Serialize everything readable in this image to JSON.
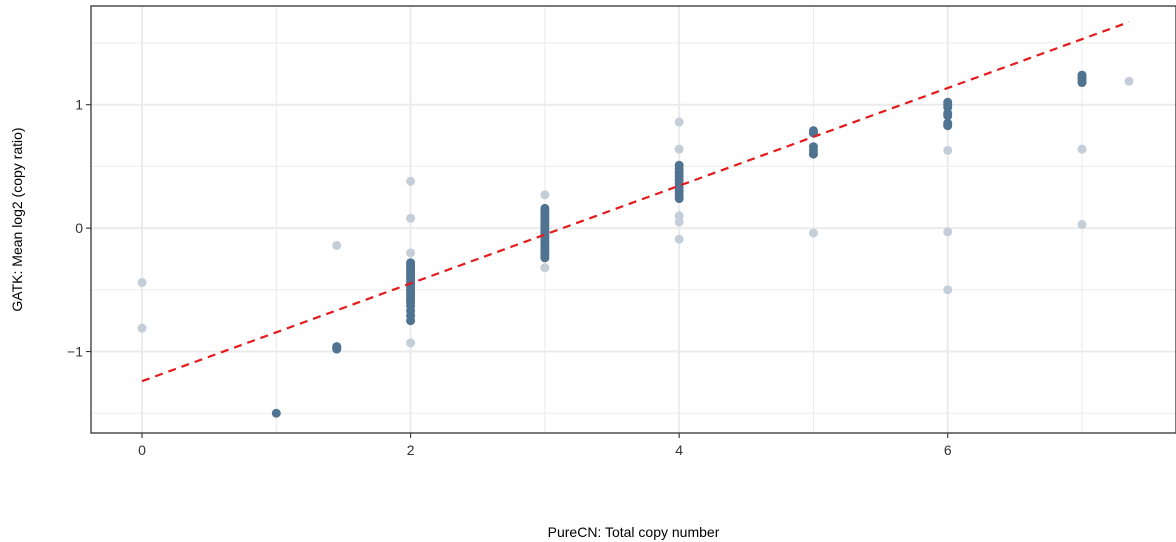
{
  "chart_data": {
    "type": "scatter",
    "title": "",
    "xlabel": "PureCN: Total copy number",
    "ylabel": "GATK: Mean log2 (copy ratio)",
    "xlim": [
      -0.38,
      7.7
    ],
    "ylim": [
      -1.66,
      1.8
    ],
    "x_ticks": [
      0,
      2,
      4,
      6
    ],
    "x_tick_labels": [
      "0",
      "2",
      "4",
      "6"
    ],
    "y_ticks": [
      -1,
      0,
      1
    ],
    "y_tick_labels": [
      "−1",
      "0",
      "1"
    ],
    "grid": true,
    "legend": "none",
    "colors": {
      "primary_points": "#4f7390",
      "faded_points": "#c4ced9",
      "fit_line": "#e41a1c",
      "grid": "#ebebeb",
      "panel_border": "#333333"
    },
    "series": [
      {
        "role": "faded",
        "points": [
          [
            0,
            -0.44
          ],
          [
            0,
            -0.81
          ],
          [
            1.45,
            -0.14
          ],
          [
            2,
            0.38
          ],
          [
            2,
            0.08
          ],
          [
            2,
            -0.2
          ],
          [
            2,
            -0.93
          ],
          [
            3,
            0.27
          ],
          [
            3,
            -0.32
          ],
          [
            4,
            0.86
          ],
          [
            4,
            0.64
          ],
          [
            4,
            0.1
          ],
          [
            4,
            0.05
          ],
          [
            4,
            -0.09
          ],
          [
            5,
            -0.04
          ],
          [
            6,
            0.63
          ],
          [
            6,
            -0.03
          ],
          [
            6,
            -0.5
          ],
          [
            7,
            0.64
          ],
          [
            7,
            0.03
          ],
          [
            7.35,
            1.19
          ]
        ]
      },
      {
        "role": "primary",
        "points": [
          [
            1,
            -1.5
          ],
          [
            1.45,
            -0.96
          ],
          [
            1.45,
            -0.97
          ],
          [
            1.45,
            -0.98
          ],
          [
            2,
            -0.28
          ],
          [
            2,
            -0.3
          ],
          [
            2,
            -0.32
          ],
          [
            2,
            -0.34
          ],
          [
            2,
            -0.36
          ],
          [
            2,
            -0.38
          ],
          [
            2,
            -0.4
          ],
          [
            2,
            -0.42
          ],
          [
            2,
            -0.44
          ],
          [
            2,
            -0.46
          ],
          [
            2,
            -0.48
          ],
          [
            2,
            -0.5
          ],
          [
            2,
            -0.52
          ],
          [
            2,
            -0.54
          ],
          [
            2,
            -0.56
          ],
          [
            2,
            -0.58
          ],
          [
            2,
            -0.6
          ],
          [
            2,
            -0.63
          ],
          [
            2,
            -0.67
          ],
          [
            2,
            -0.71
          ],
          [
            2,
            -0.75
          ],
          [
            3,
            0.16
          ],
          [
            3,
            0.14
          ],
          [
            3,
            0.12
          ],
          [
            3,
            0.1
          ],
          [
            3,
            0.08
          ],
          [
            3,
            0.06
          ],
          [
            3,
            0.04
          ],
          [
            3,
            0.02
          ],
          [
            3,
            0.0
          ],
          [
            3,
            -0.02
          ],
          [
            3,
            -0.04
          ],
          [
            3,
            -0.06
          ],
          [
            3,
            -0.08
          ],
          [
            3,
            -0.1
          ],
          [
            3,
            -0.12
          ],
          [
            3,
            -0.14
          ],
          [
            3,
            -0.16
          ],
          [
            3,
            -0.18
          ],
          [
            3,
            -0.2
          ],
          [
            3,
            -0.22
          ],
          [
            3,
            -0.24
          ],
          [
            4,
            0.51
          ],
          [
            4,
            0.48
          ],
          [
            4,
            0.45
          ],
          [
            4,
            0.42
          ],
          [
            4,
            0.39
          ],
          [
            4,
            0.36
          ],
          [
            4,
            0.33
          ],
          [
            4,
            0.3
          ],
          [
            4,
            0.27
          ],
          [
            4,
            0.24
          ],
          [
            5,
            0.79
          ],
          [
            5,
            0.77
          ],
          [
            5,
            0.66
          ],
          [
            5,
            0.63
          ],
          [
            5,
            0.6
          ],
          [
            6,
            1.02
          ],
          [
            6,
            1.0
          ],
          [
            6,
            0.98
          ],
          [
            6,
            0.93
          ],
          [
            6,
            0.91
          ],
          [
            6,
            0.85
          ],
          [
            6,
            0.83
          ],
          [
            7,
            1.24
          ],
          [
            7,
            1.22
          ],
          [
            7,
            1.2
          ],
          [
            7,
            1.18
          ]
        ]
      }
    ],
    "fit_line": {
      "x": [
        0,
        7.35
      ],
      "y": [
        -1.24,
        1.67
      ],
      "style": "dashed"
    }
  }
}
